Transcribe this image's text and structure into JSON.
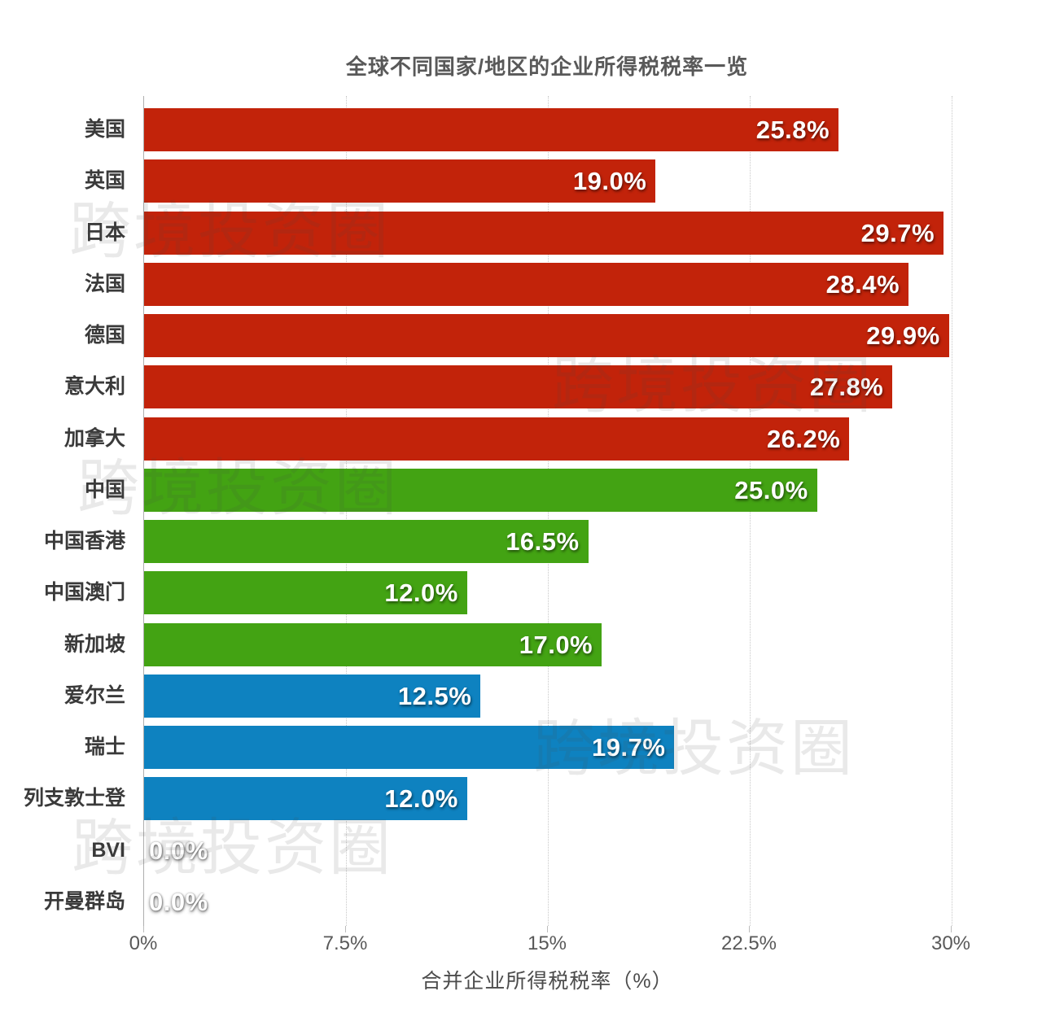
{
  "title": "全球不同国家/地区的企业所得税税率一览",
  "watermark_text": "跨境投资圈",
  "x_axis": {
    "label": "合并企业所得税税率（%）",
    "ticks": [
      "0%",
      "7.5%",
      "15%",
      "22.5%",
      "30%"
    ]
  },
  "palette": {
    "red": "#c2230a",
    "green": "#43a313",
    "blue": "#0e82c0"
  },
  "chart_data": {
    "type": "bar",
    "orientation": "horizontal",
    "title": "全球不同国家/地区的企业所得税税率一览",
    "xlabel": "合并企业所得税税率（%）",
    "xlim": [
      0,
      30
    ],
    "x_tick_values": [
      0,
      7.5,
      15,
      22.5,
      30
    ],
    "grid": "vertical-dotted",
    "legend_position": "none",
    "categories": [
      "美国",
      "英国",
      "日本",
      "法国",
      "德国",
      "意大利",
      "加拿大",
      "中国",
      "中国香港",
      "中国澳门",
      "新加坡",
      "爱尔兰",
      "瑞士",
      "列支敦士登",
      "BVI",
      "开曼群岛"
    ],
    "values": [
      25.8,
      19.0,
      29.7,
      28.4,
      29.9,
      27.8,
      26.2,
      25.0,
      16.5,
      12.0,
      17.0,
      12.5,
      19.7,
      12.0,
      0.0,
      0.0
    ],
    "value_labels": [
      "25.8%",
      "19.0%",
      "29.7%",
      "28.4%",
      "29.9%",
      "27.8%",
      "26.2%",
      "25.0%",
      "16.5%",
      "12.0%",
      "17.0%",
      "12.5%",
      "19.7%",
      "12.0%",
      "0.0%",
      "0.0%"
    ],
    "color_groups": [
      "red",
      "red",
      "red",
      "red",
      "red",
      "red",
      "red",
      "green",
      "green",
      "green",
      "green",
      "blue",
      "blue",
      "blue",
      "none",
      "none"
    ]
  }
}
